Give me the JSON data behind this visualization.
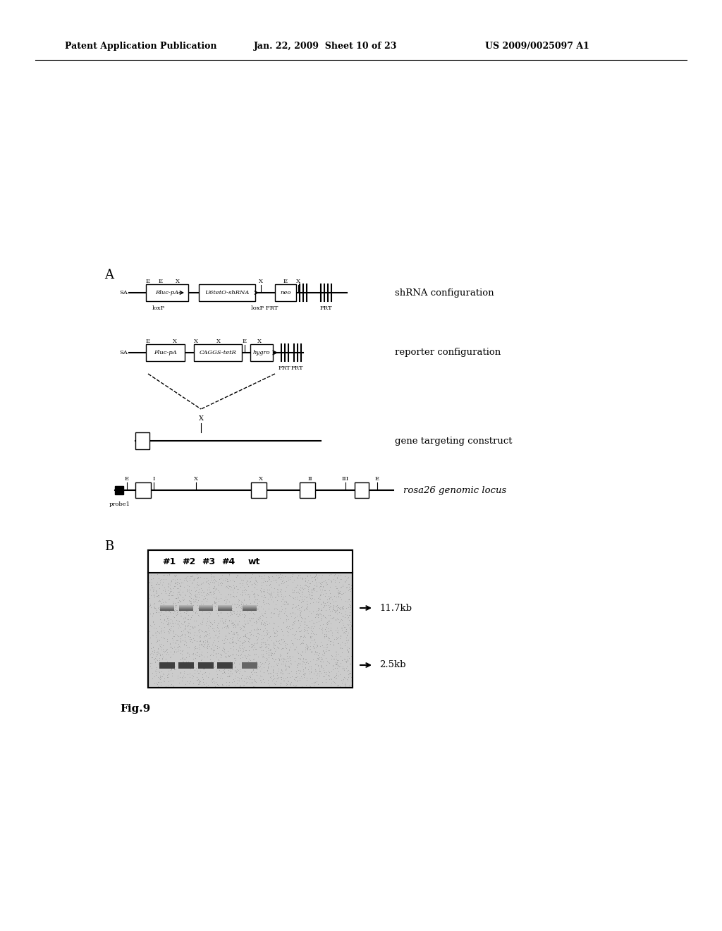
{
  "header_left": "Patent Application Publication",
  "header_center": "Jan. 22, 2009  Sheet 10 of 23",
  "header_right": "US 2009/0025097 A1",
  "label_A": "A",
  "label_B": "B",
  "fig_label": "Fig.9",
  "shrna_label": "shRNA configuration",
  "reporter_label": "reporter configuration",
  "targeting_label": "gene targeting construct",
  "rosa26_label": "rosa26 genomic locus",
  "probe_label": "probe1",
  "gel_columns": [
    "#1",
    "#2",
    "#3",
    "#4",
    "wt"
  ],
  "band1_label": "11.7kb",
  "band2_label": "2.5kb",
  "bg_color": "#ffffff"
}
